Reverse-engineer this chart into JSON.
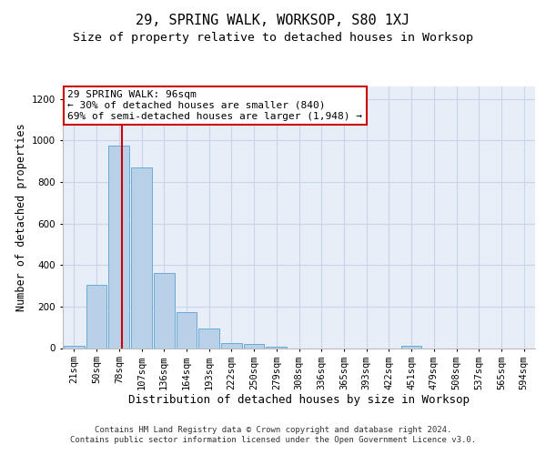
{
  "title": "29, SPRING WALK, WORKSOP, S80 1XJ",
  "subtitle": "Size of property relative to detached houses in Worksop",
  "xlabel": "Distribution of detached houses by size in Worksop",
  "ylabel": "Number of detached properties",
  "bin_labels": [
    "21sqm",
    "50sqm",
    "78sqm",
    "107sqm",
    "136sqm",
    "164sqm",
    "193sqm",
    "222sqm",
    "250sqm",
    "279sqm",
    "308sqm",
    "336sqm",
    "365sqm",
    "393sqm",
    "422sqm",
    "451sqm",
    "479sqm",
    "508sqm",
    "537sqm",
    "565sqm",
    "594sqm"
  ],
  "bar_values": [
    10,
    305,
    975,
    870,
    360,
    175,
    95,
    22,
    20,
    8,
    0,
    0,
    0,
    0,
    0,
    10,
    0,
    0,
    0,
    0,
    0
  ],
  "bar_color": "#b8d0e8",
  "bar_edge_color": "#6aaad4",
  "vline_color": "#cc0000",
  "annotation_text": "29 SPRING WALK: 96sqm\n← 30% of detached houses are smaller (840)\n69% of semi-detached houses are larger (1,948) →",
  "annotation_box_color": "#ffffff",
  "annotation_box_edge_color": "#cc0000",
  "ylim": [
    0,
    1260
  ],
  "yticks": [
    0,
    200,
    400,
    600,
    800,
    1000,
    1200
  ],
  "grid_color": "#c8d4e8",
  "background_color": "#e8eef8",
  "footer_text": "Contains HM Land Registry data © Crown copyright and database right 2024.\nContains public sector information licensed under the Open Government Licence v3.0.",
  "title_fontsize": 11,
  "subtitle_fontsize": 9.5,
  "axis_label_fontsize": 8.5,
  "tick_fontsize": 7.5,
  "annotation_fontsize": 8,
  "footer_fontsize": 6.5
}
